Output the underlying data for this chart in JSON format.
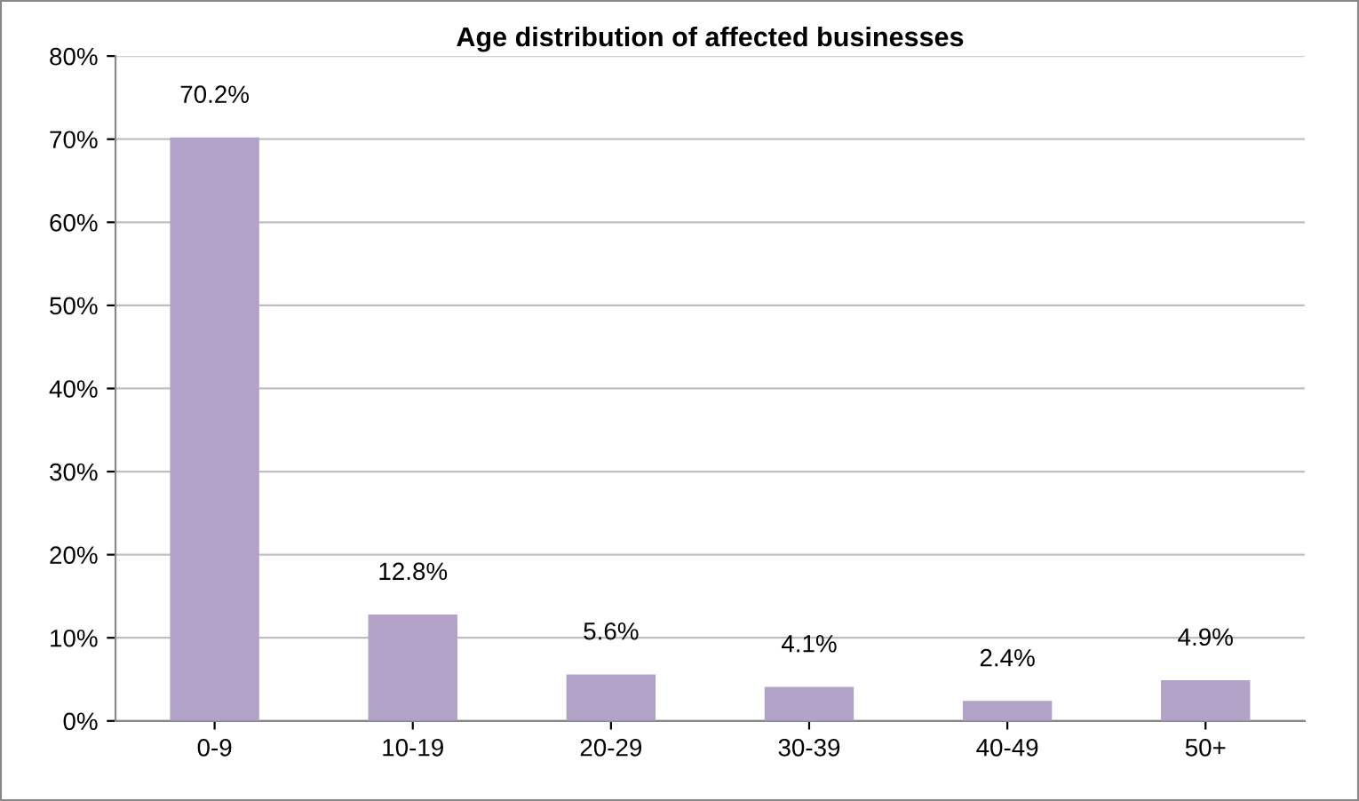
{
  "chart_data": {
    "type": "bar",
    "title": "Age distribution of affected businesses",
    "categories": [
      "0-9",
      "10-19",
      "20-29",
      "30-39",
      "40-49",
      "50+"
    ],
    "values": [
      70.2,
      12.8,
      5.6,
      4.1,
      2.4,
      4.9
    ],
    "value_labels": [
      "70.2%",
      "12.8%",
      "5.6%",
      "4.1%",
      "2.4%",
      "4.9%"
    ],
    "color": "#b3a2c7",
    "ylim": [
      0,
      80
    ],
    "yticks": [
      {
        "value": 0,
        "label": "0%"
      },
      {
        "value": 10,
        "label": "10%"
      },
      {
        "value": 20,
        "label": "20%"
      },
      {
        "value": 30,
        "label": "30%"
      },
      {
        "value": 40,
        "label": "40%"
      },
      {
        "value": 50,
        "label": "50%"
      },
      {
        "value": 60,
        "label": "60%"
      },
      {
        "value": 70,
        "label": "70%"
      },
      {
        "value": 80,
        "label": "80%"
      }
    ],
    "grid": "y",
    "legend": false
  }
}
